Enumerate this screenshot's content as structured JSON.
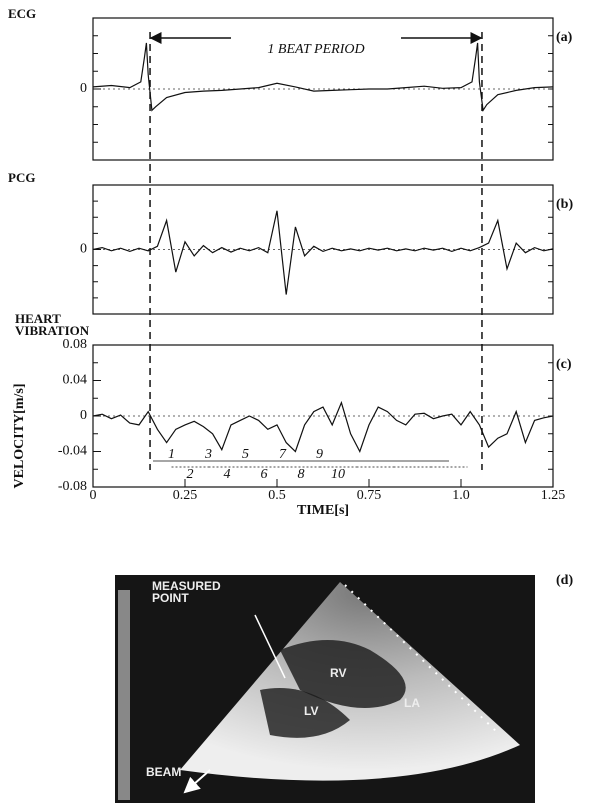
{
  "chart_data": [
    {
      "type": "line",
      "title": "ECG",
      "panel_label": "(a)",
      "annotation": "1 BEAT PERIOD",
      "vlines": [
        0.155,
        1.057
      ],
      "xlim": [
        0,
        1.25
      ],
      "ylim": [
        -1,
        1
      ],
      "yticks": [
        0
      ],
      "x": [
        0,
        0.05,
        0.1,
        0.13,
        0.14,
        0.145,
        0.15,
        0.16,
        0.17,
        0.2,
        0.25,
        0.3,
        0.35,
        0.4,
        0.45,
        0.5,
        0.55,
        0.6,
        0.65,
        0.7,
        0.75,
        0.8,
        0.85,
        0.9,
        0.95,
        1.0,
        1.03,
        1.04,
        1.045,
        1.05,
        1.06,
        1.07,
        1.1,
        1.15,
        1.2,
        1.25
      ],
      "values": [
        0.03,
        0.05,
        0.02,
        0.1,
        0.45,
        0.65,
        0.2,
        -0.3,
        -0.25,
        -0.12,
        -0.05,
        -0.03,
        -0.02,
        0,
        0.02,
        0.08,
        0.03,
        -0.03,
        -0.02,
        -0.01,
        0,
        0,
        0.02,
        0.04,
        0.01,
        0.02,
        0.1,
        0.45,
        0.65,
        0.1,
        -0.3,
        -0.22,
        -0.08,
        -0.02,
        0.02,
        0.03
      ],
      "color": "#111111"
    },
    {
      "type": "line",
      "title": "PCG",
      "panel_label": "(b)",
      "xlim": [
        0,
        1.25
      ],
      "ylim": [
        -1,
        1
      ],
      "yticks": [
        0
      ],
      "x": [
        0,
        0.025,
        0.05,
        0.075,
        0.1,
        0.125,
        0.15,
        0.175,
        0.2,
        0.225,
        0.25,
        0.275,
        0.3,
        0.325,
        0.35,
        0.375,
        0.4,
        0.425,
        0.45,
        0.475,
        0.5,
        0.525,
        0.55,
        0.575,
        0.6,
        0.625,
        0.65,
        0.675,
        0.7,
        0.725,
        0.75,
        0.775,
        0.8,
        0.825,
        0.85,
        0.875,
        0.9,
        0.925,
        0.95,
        0.975,
        1.0,
        1.025,
        1.05,
        1.075,
        1.1,
        1.125,
        1.15,
        1.175,
        1.2,
        1.225,
        1.25
      ],
      "values": [
        0,
        0.03,
        -0.02,
        0.02,
        -0.03,
        0.02,
        -0.02,
        0.05,
        0.45,
        -0.35,
        0.12,
        -0.1,
        0.06,
        -0.05,
        0.03,
        -0.04,
        0.02,
        -0.02,
        0.03,
        -0.05,
        0.6,
        -0.7,
        0.35,
        -0.1,
        0.05,
        -0.03,
        0.02,
        -0.02,
        0.01,
        -0.02,
        0.02,
        -0.01,
        0.02,
        -0.02,
        0.01,
        -0.02,
        0.02,
        -0.01,
        0.02,
        -0.03,
        0.02,
        -0.02,
        0.03,
        0.1,
        0.45,
        -0.3,
        0.1,
        -0.05,
        0.03,
        -0.02,
        0.01
      ],
      "color": "#111111"
    },
    {
      "type": "line",
      "title": "HEART VIBRATION",
      "panel_label": "(c)",
      "ylabel": "VELOCITY[m/s]",
      "xlabel": "TIME[s]",
      "interval_labels": [
        "1",
        "2",
        "3",
        "4",
        "5",
        "6",
        "7",
        "8",
        "9",
        "10"
      ],
      "xlim": [
        0,
        1.25
      ],
      "ylim": [
        -0.08,
        0.08
      ],
      "yticks": [
        0.08,
        0.04,
        0,
        -0.04,
        -0.08
      ],
      "xticks": [
        0,
        0.25,
        0.5,
        0.75,
        {
          "value": 1,
          "label": "1.0"
        },
        1.25
      ],
      "x": [
        0,
        0.025,
        0.05,
        0.075,
        0.1,
        0.125,
        0.15,
        0.175,
        0.2,
        0.225,
        0.25,
        0.275,
        0.3,
        0.325,
        0.35,
        0.375,
        0.4,
        0.425,
        0.45,
        0.475,
        0.5,
        0.525,
        0.55,
        0.575,
        0.6,
        0.625,
        0.65,
        0.675,
        0.7,
        0.725,
        0.75,
        0.775,
        0.8,
        0.825,
        0.85,
        0.875,
        0.9,
        0.925,
        0.95,
        0.975,
        1.0,
        1.025,
        1.05,
        1.075,
        1.1,
        1.125,
        1.15,
        1.175,
        1.2,
        1.225,
        1.25
      ],
      "values": [
        0,
        0.002,
        -0.003,
        0.001,
        -0.008,
        -0.01,
        0.005,
        -0.015,
        -0.03,
        -0.015,
        -0.01,
        -0.006,
        -0.012,
        -0.02,
        -0.038,
        -0.01,
        -0.005,
        0,
        -0.005,
        -0.015,
        -0.01,
        -0.03,
        -0.04,
        -0.01,
        0.005,
        0.01,
        -0.01,
        0.015,
        -0.02,
        -0.04,
        -0.01,
        0.01,
        0.005,
        -0.005,
        -0.01,
        0.002,
        0.003,
        -0.003,
        0,
        0.002,
        -0.01,
        0.005,
        -0.01,
        -0.035,
        -0.025,
        -0.02,
        0.005,
        -0.03,
        -0.005,
        -0.002,
        0
      ],
      "color": "#111111"
    }
  ],
  "image": {
    "panel_label": "(d)",
    "labels": {
      "measured_point": "MEASURED POINT",
      "rv": "RV",
      "lv": "LV",
      "la": "LA",
      "beam": "BEAM"
    }
  }
}
